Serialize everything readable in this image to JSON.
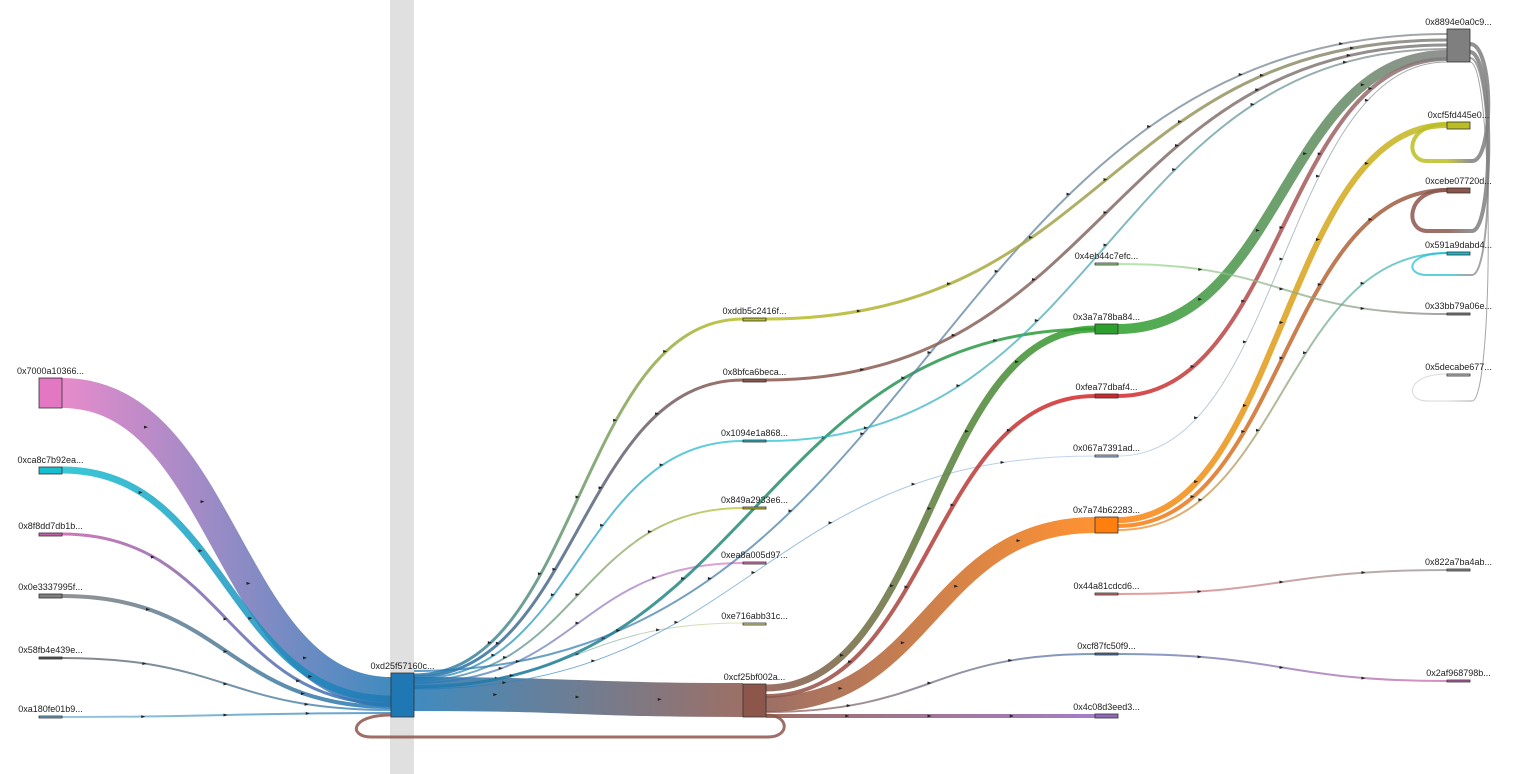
{
  "colors": {
    "background": "#ffffff",
    "scroll_band": "#e0e0e0",
    "label_text": "#222222"
  },
  "nodes": [
    {
      "id": "n_7000",
      "label": "0x7000a10366...",
      "color": "#e377c2"
    },
    {
      "id": "n_ca8c",
      "label": "0xca8c7b92ea...",
      "color": "#17becf"
    },
    {
      "id": "n_8f8d",
      "label": "0x8f8dd7db1b...",
      "color": "#c75fa9"
    },
    {
      "id": "n_0e33",
      "label": "0x0e3337995f...",
      "color": "#7f7f7f"
    },
    {
      "id": "n_58fb",
      "label": "0x58fb4e439e...",
      "color": "#555555"
    },
    {
      "id": "n_a180",
      "label": "0xa180fe01b9...",
      "color": "#6baed6"
    },
    {
      "id": "n_d25f",
      "label": "0xd25f57160c...",
      "color": "#1f77b4"
    },
    {
      "id": "n_ddb5",
      "label": "0xddb5c2416f...",
      "color": "#bcbd22"
    },
    {
      "id": "n_8bfc",
      "label": "0x8bfca6beca...",
      "color": "#8c564b"
    },
    {
      "id": "n_1094",
      "label": "0x1094e1a868...",
      "color": "#17becf"
    },
    {
      "id": "n_849a",
      "label": "0x849a2933e6...",
      "color": "#bcbd22"
    },
    {
      "id": "n_ea8a",
      "label": "0xea8a005d97...",
      "color": "#e377c2"
    },
    {
      "id": "n_e716",
      "label": "0xe716abb31c...",
      "color": "#dbdb8d"
    },
    {
      "id": "n_cf25",
      "label": "0xcf25bf002a...",
      "color": "#8c564b"
    },
    {
      "id": "n_4eb4",
      "label": "0x4eb44c7efc...",
      "color": "#98df8a"
    },
    {
      "id": "n_3a7a",
      "label": "0x3a7a78ba84...",
      "color": "#2ca02c"
    },
    {
      "id": "n_fea7",
      "label": "0xfea77dbaf4...",
      "color": "#d62728"
    },
    {
      "id": "n_067a",
      "label": "0x067a7391ad...",
      "color": "#aec7e8"
    },
    {
      "id": "n_7a74",
      "label": "0x7a74b62283...",
      "color": "#ff7f0e"
    },
    {
      "id": "n_44a8",
      "label": "0x44a81cdcd6...",
      "color": "#e07070"
    },
    {
      "id": "n_cf87",
      "label": "0xcf87fc50f9...",
      "color": "#4a6fa5"
    },
    {
      "id": "n_4c08",
      "label": "0x4c08d3eed3...",
      "color": "#9467bd"
    },
    {
      "id": "n_8894",
      "label": "0x8894e0a0c9...",
      "color": "#7f7f7f"
    },
    {
      "id": "n_cf5f",
      "label": "0xcf5fd445e0...",
      "color": "#bcbd22"
    },
    {
      "id": "n_cebe",
      "label": "0xcebe07720d...",
      "color": "#8c564b"
    },
    {
      "id": "n_591a",
      "label": "0x591a9dabd4...",
      "color": "#17becf"
    },
    {
      "id": "n_33bb",
      "label": "0x33bb79a06e...",
      "color": "#7f7f7f"
    },
    {
      "id": "n_5dec",
      "label": "0x5decabe677...",
      "color": "#c7c7c7"
    },
    {
      "id": "n_822a",
      "label": "0x822a7ba4ab...",
      "color": "#8c8c8c"
    },
    {
      "id": "n_2af9",
      "label": "0x2af968798b...",
      "color": "#c75fa9"
    }
  ],
  "links": [
    {
      "source": "n_7000",
      "target": "n_d25f"
    },
    {
      "source": "n_ca8c",
      "target": "n_d25f"
    },
    {
      "source": "n_8f8d",
      "target": "n_d25f"
    },
    {
      "source": "n_0e33",
      "target": "n_d25f"
    },
    {
      "source": "n_58fb",
      "target": "n_d25f"
    },
    {
      "source": "n_a180",
      "target": "n_d25f"
    },
    {
      "source": "n_d25f",
      "target": "n_cf25"
    },
    {
      "source": "n_d25f",
      "target": "n_ddb5"
    },
    {
      "source": "n_d25f",
      "target": "n_8bfc"
    },
    {
      "source": "n_d25f",
      "target": "n_1094"
    },
    {
      "source": "n_d25f",
      "target": "n_849a"
    },
    {
      "source": "n_d25f",
      "target": "n_ea8a"
    },
    {
      "source": "n_d25f",
      "target": "n_e716"
    },
    {
      "source": "n_d25f",
      "target": "n_3a7a"
    },
    {
      "source": "n_d25f",
      "target": "n_067a"
    },
    {
      "source": "n_d25f",
      "target": "n_8894"
    },
    {
      "source": "n_ddb5",
      "target": "n_8894"
    },
    {
      "source": "n_8bfc",
      "target": "n_8894"
    },
    {
      "source": "n_1094",
      "target": "n_8894"
    },
    {
      "source": "n_cf25",
      "target": "n_3a7a"
    },
    {
      "source": "n_cf25",
      "target": "n_fea7"
    },
    {
      "source": "n_cf25",
      "target": "n_7a74"
    },
    {
      "source": "n_cf25",
      "target": "n_cf87"
    },
    {
      "source": "n_cf25",
      "target": "n_4c08"
    },
    {
      "source": "n_cf25",
      "target": "n_d25f"
    },
    {
      "source": "n_3a7a",
      "target": "n_8894"
    },
    {
      "source": "n_fea7",
      "target": "n_8894"
    },
    {
      "source": "n_067a",
      "target": "n_8894"
    },
    {
      "source": "n_7a74",
      "target": "n_cf5f"
    },
    {
      "source": "n_7a74",
      "target": "n_cebe"
    },
    {
      "source": "n_7a74",
      "target": "n_591a"
    },
    {
      "source": "n_4eb4",
      "target": "n_33bb"
    },
    {
      "source": "n_44a8",
      "target": "n_822a"
    },
    {
      "source": "n_cf87",
      "target": "n_2af9"
    },
    {
      "source": "n_8894",
      "target": "n_cf5f"
    },
    {
      "source": "n_8894",
      "target": "n_cebe"
    },
    {
      "source": "n_8894",
      "target": "n_591a"
    },
    {
      "source": "n_8894",
      "target": "n_5dec"
    }
  ]
}
